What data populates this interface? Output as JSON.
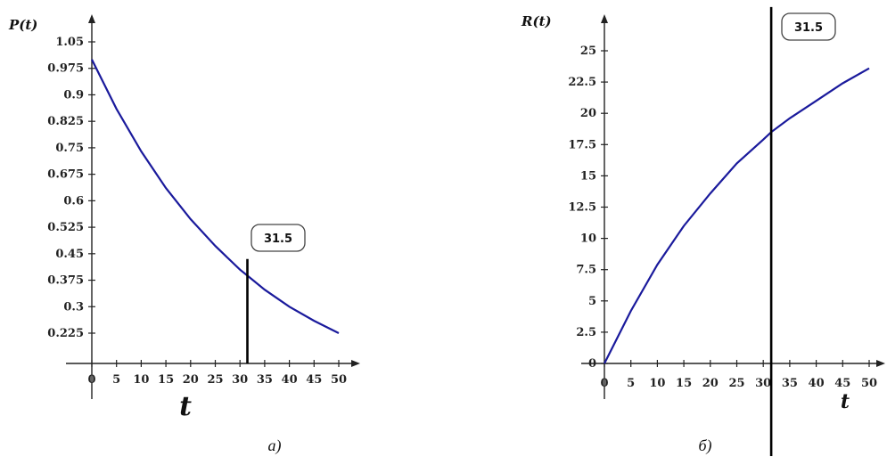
{
  "colors": {
    "curve": "#1a1a9c",
    "axis": "#222222",
    "marker": "#000000"
  },
  "chart_data": [
    {
      "type": "line",
      "caption": "a)",
      "xlabel": "t",
      "ylabel": "P(t)",
      "xlim": [
        0,
        50
      ],
      "ylim": [
        0.15,
        1.09
      ],
      "x_ticks": [
        0,
        5,
        10,
        15,
        20,
        25,
        30,
        35,
        40,
        45,
        50
      ],
      "x_tick_labels": [
        "0",
        "5",
        "10",
        "15",
        "20",
        "25",
        "30",
        "35",
        "40",
        "45",
        "50"
      ],
      "y_ticks": [
        0.225,
        0.3,
        0.375,
        0.45,
        0.525,
        0.6,
        0.675,
        0.75,
        0.825,
        0.9,
        0.975,
        1.05
      ],
      "y_tick_labels": [
        "0.225",
        "0.3",
        "0.375",
        "0.45",
        "0.525",
        "0.6",
        "0.675",
        "0.75",
        "0.825",
        "0.9",
        "0.975",
        "1.05"
      ],
      "series": [
        {
          "x": [
            0,
            5,
            10,
            15,
            20,
            25,
            30,
            31.5,
            35,
            40,
            45,
            50
          ],
          "y": [
            1.0,
            0.86,
            0.74,
            0.636,
            0.548,
            0.472,
            0.405,
            0.388,
            0.348,
            0.3,
            0.26,
            0.225
          ]
        }
      ],
      "marker": {
        "x": 31.5,
        "label": "31.5",
        "y_top": 0.435
      },
      "grid": false
    },
    {
      "type": "line",
      "caption": "б)",
      "xlabel": "t",
      "ylabel": "R(t)",
      "xlim": [
        0,
        50
      ],
      "ylim": [
        0,
        27
      ],
      "x_ticks": [
        0,
        5,
        10,
        15,
        20,
        25,
        30,
        35,
        40,
        45,
        50
      ],
      "x_tick_labels": [
        "0",
        "5",
        "10",
        "15",
        "20",
        "25",
        "30",
        "35",
        "40",
        "45",
        "50"
      ],
      "y_ticks": [
        0,
        2.5,
        5,
        7.5,
        10,
        12.5,
        15,
        17.5,
        20,
        22.5,
        25
      ],
      "y_tick_labels": [
        "0",
        "2.5",
        "5",
        "7.5",
        "10",
        "12.5",
        "15",
        "17.5",
        "20",
        "22.5",
        "25"
      ],
      "series": [
        {
          "x": [
            0,
            5,
            10,
            15,
            20,
            25,
            30,
            31.5,
            35,
            40,
            45,
            50
          ],
          "y": [
            0,
            4.2,
            7.9,
            11.0,
            13.6,
            16.0,
            17.9,
            18.5,
            19.6,
            21.0,
            22.4,
            23.6
          ]
        }
      ],
      "marker": {
        "x": 31.5,
        "label": "31.5",
        "y_top": 28.5
      },
      "grid": false
    }
  ]
}
